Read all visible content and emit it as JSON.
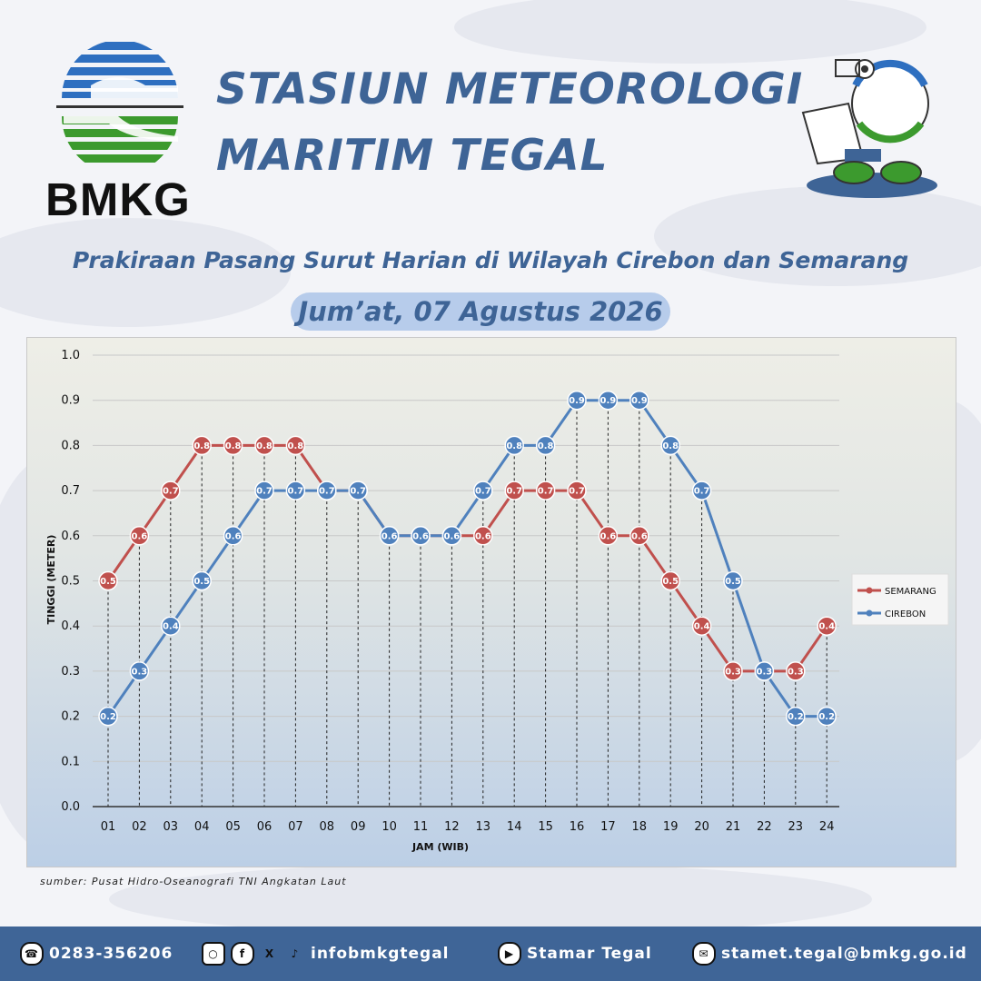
{
  "header": {
    "logo_text": "BMKG",
    "title_line1": "STASIUN METEOROLOGI",
    "title_line2": "MARITIM TEGAL",
    "subtitle": "Prakiraan Pasang Surut Harian di Wilayah Cirebon dan Semarang",
    "date": "Jum’at, 07 Agustus 2026"
  },
  "source": "sumber: Pusat Hidro-Oseanografi TNI Angkatan Laut",
  "footer": {
    "phone": "0283-356206",
    "social": "infobmkgtegal",
    "youtube": "Stamar Tegal",
    "email": "stamet.tegal@bmkg.go.id"
  },
  "colors": {
    "semarang": "#c0504d",
    "cirebon": "#4f81bd",
    "brand_blue": "#3e6496"
  },
  "icons": [
    "phone-icon",
    "instagram-icon",
    "facebook-icon",
    "x-icon",
    "tiktok-icon",
    "youtube-icon",
    "email-icon"
  ],
  "chart_data": {
    "type": "line",
    "xlabel": "JAM (WIB)",
    "ylabel": "TINGGI (METER)",
    "ylim": [
      0,
      1.0
    ],
    "yticks": [
      "0.0",
      "0.1",
      "0.2",
      "0.3",
      "0.4",
      "0.5",
      "0.6",
      "0.7",
      "0.8",
      "0.9",
      "1.0"
    ],
    "categories": [
      "01",
      "02",
      "03",
      "04",
      "05",
      "06",
      "07",
      "08",
      "09",
      "10",
      "11",
      "12",
      "13",
      "14",
      "15",
      "16",
      "17",
      "18",
      "19",
      "20",
      "21",
      "22",
      "23",
      "24"
    ],
    "legend_position": "right",
    "grid": true,
    "series": [
      {
        "name": "SEMARANG",
        "color": "#c0504d",
        "values": [
          0.5,
          0.6,
          0.7,
          0.8,
          0.8,
          0.8,
          0.8,
          0.7,
          0.7,
          0.6,
          0.6,
          0.6,
          0.6,
          0.7,
          0.7,
          0.7,
          0.6,
          0.6,
          0.5,
          0.4,
          0.3,
          0.3,
          0.3,
          0.4
        ]
      },
      {
        "name": "CIREBON",
        "color": "#4f81bd",
        "values": [
          0.2,
          0.3,
          0.4,
          0.5,
          0.6,
          0.7,
          0.7,
          0.7,
          0.7,
          0.6,
          0.6,
          0.6,
          0.7,
          0.8,
          0.8,
          0.9,
          0.9,
          0.9,
          0.8,
          0.7,
          0.5,
          0.3,
          0.2,
          0.2
        ]
      }
    ]
  }
}
